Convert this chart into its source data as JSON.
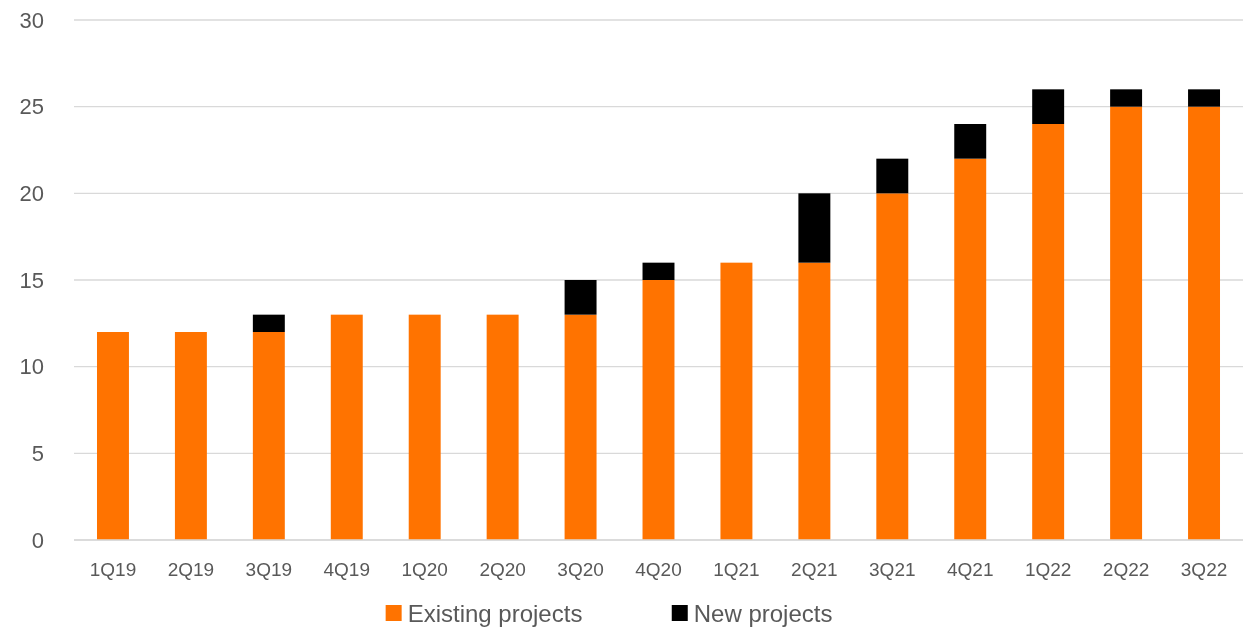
{
  "chart_data": {
    "type": "bar",
    "stacked": true,
    "categories": [
      "1Q19",
      "2Q19",
      "3Q19",
      "4Q19",
      "1Q20",
      "2Q20",
      "3Q20",
      "4Q20",
      "1Q21",
      "2Q21",
      "3Q21",
      "4Q21",
      "1Q22",
      "2Q22",
      "3Q22"
    ],
    "series": [
      {
        "name": "Existing projects",
        "color": "#ff7300",
        "values": [
          12,
          12,
          12,
          13,
          13,
          13,
          13,
          15,
          16,
          16,
          20,
          22,
          24,
          25,
          25
        ]
      },
      {
        "name": "New projects",
        "color": "#000000",
        "values": [
          0,
          0,
          1,
          0,
          0,
          0,
          2,
          1,
          0,
          4,
          2,
          2,
          2,
          1,
          1
        ]
      }
    ],
    "ylim": [
      0,
      30
    ],
    "yticks": [
      0,
      5,
      10,
      15,
      20,
      25,
      30
    ],
    "grid": "y",
    "legend": "bottom"
  }
}
